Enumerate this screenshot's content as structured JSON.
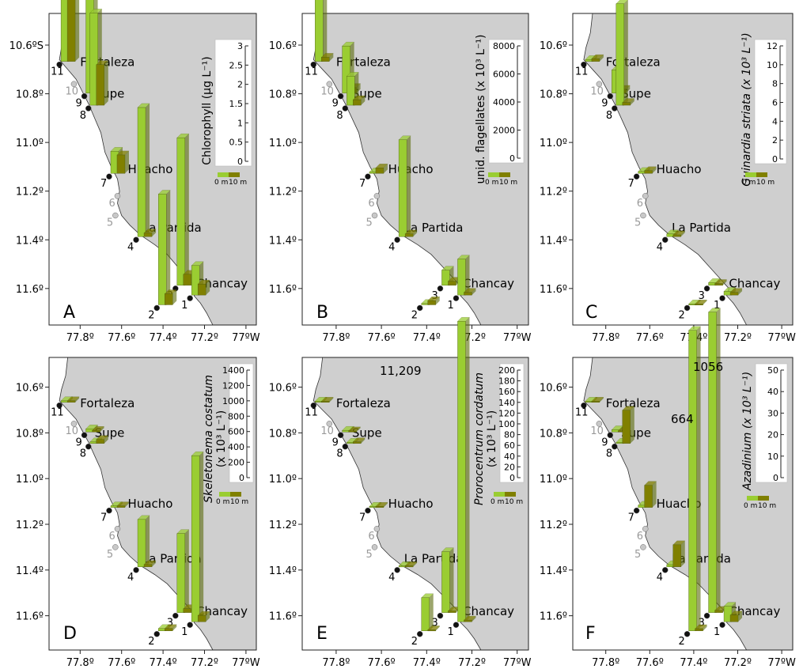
{
  "axes": {
    "lon_ticks": [
      {
        "value": -77.8,
        "label": "77.8º"
      },
      {
        "value": -77.6,
        "label": "77.6º"
      },
      {
        "value": -77.4,
        "label": "77.4º"
      },
      {
        "value": -77.2,
        "label": "77.2º"
      },
      {
        "value": -77.0,
        "label": "77ºW"
      }
    ],
    "lat_ticks": [
      {
        "value": -10.6,
        "label": "10.6º",
        "label_first": "10.6ºS"
      },
      {
        "value": -10.8,
        "label": "10.8º"
      },
      {
        "value": -11.0,
        "label": "11.0º"
      },
      {
        "value": -11.2,
        "label": "11.2º"
      },
      {
        "value": -11.4,
        "label": "11.4º"
      },
      {
        "value": -11.6,
        "label": "11.6º"
      }
    ],
    "lon_range": [
      -77.95,
      -76.95
    ],
    "lat_range": [
      -10.47,
      -11.75
    ]
  },
  "colors": {
    "land": "#cfcfcf",
    "sea": "#ffffff",
    "bar_0m": "#9acd32",
    "bar_10m": "#808000",
    "station_dark": "#111111",
    "station_light": "#c8c8c8",
    "label_light": "#9a9a9a"
  },
  "towns": [
    {
      "name": "Fortaleza",
      "lon": -77.8,
      "lat": -10.67
    },
    {
      "name": "Supe",
      "lon": -77.73,
      "lat": -10.8
    },
    {
      "name": "Huacho",
      "lon": -77.57,
      "lat": -11.11
    },
    {
      "name": "La Partida",
      "lon": -77.5,
      "lat": -11.35
    },
    {
      "name": "Chancay",
      "lon": -77.24,
      "lat": -11.58
    }
  ],
  "stations": [
    {
      "id": "1",
      "lon": -77.27,
      "lat": -11.64,
      "sampled": true
    },
    {
      "id": "2",
      "lon": -77.43,
      "lat": -11.68,
      "sampled": true
    },
    {
      "id": "3",
      "lon": -77.34,
      "lat": -11.6,
      "sampled": true
    },
    {
      "id": "4",
      "lon": -77.53,
      "lat": -11.4,
      "sampled": true
    },
    {
      "id": "5",
      "lon": -77.63,
      "lat": -11.3,
      "sampled": false
    },
    {
      "id": "6",
      "lon": -77.62,
      "lat": -11.22,
      "sampled": false
    },
    {
      "id": "7",
      "lon": -77.66,
      "lat": -11.14,
      "sampled": true
    },
    {
      "id": "8",
      "lon": -77.76,
      "lat": -10.86,
      "sampled": true
    },
    {
      "id": "9",
      "lon": -77.78,
      "lat": -10.81,
      "sampled": true
    },
    {
      "id": "10",
      "lon": -77.83,
      "lat": -10.76,
      "sampled": false
    },
    {
      "id": "11",
      "lon": -77.9,
      "lat": -10.68,
      "sampled": true
    }
  ],
  "legend": {
    "label_0m": "0 m",
    "label_10m": "10 m"
  },
  "chart_data": [
    {
      "type": "bar",
      "panel": "A",
      "ylabel": "Chlorophyll (µg L⁻¹)",
      "ylim": [
        0,
        3
      ],
      "yticks": [
        "0",
        "0.5",
        "1",
        "1.5",
        "2",
        "2.5",
        "3"
      ],
      "series_names": [
        "0 m",
        "10 m"
      ],
      "station_values": [
        {
          "station": "11",
          "v0": 3.0,
          "v10": 2.4
        },
        {
          "station": "9",
          "v0": 2.6,
          "v10": 0.2
        },
        {
          "station": "8",
          "v0": 2.5,
          "v10": 1.1
        },
        {
          "station": "7",
          "v0": 0.6,
          "v10": 0.5
        },
        {
          "station": "4",
          "v0": 3.5,
          "v10": 0.1
        },
        {
          "station": "2",
          "v0": 3.0,
          "v10": 0.3
        },
        {
          "station": "3",
          "v0": 4.0,
          "v10": 0.3
        },
        {
          "station": "1",
          "v0": 0.8,
          "v10": 0.3
        }
      ]
    },
    {
      "type": "bar",
      "panel": "B",
      "ylabel": "unid. flagellates (x 10³ L⁻¹)",
      "ylim": [
        0,
        8000
      ],
      "yticks": [
        "0",
        "2000",
        "4000",
        "6000",
        "8000"
      ],
      "series_names": [
        "0 m",
        "10 m"
      ],
      "station_values": [
        {
          "station": "11",
          "v0": 9000,
          "v10": 300
        },
        {
          "station": "9",
          "v0": 3400,
          "v10": 400
        },
        {
          "station": "8",
          "v0": 2100,
          "v10": 400
        },
        {
          "station": "7",
          "v0": 100,
          "v10": 400
        },
        {
          "station": "4",
          "v0": 7000,
          "v10": 200
        },
        {
          "station": "2",
          "v0": 100,
          "v10": 300
        },
        {
          "station": "3",
          "v0": 1100,
          "v10": 300
        },
        {
          "station": "1",
          "v0": 2600,
          "v10": 200
        }
      ]
    },
    {
      "type": "bar",
      "panel": "C",
      "ylabel": "Guinardia striata (x 10³ L⁻¹)",
      "ylim": [
        0,
        12
      ],
      "yticks": [
        "0",
        "2",
        "4",
        "6",
        "8",
        "10",
        "12"
      ],
      "series_names": [
        "0 m",
        "10 m"
      ],
      "station_values": [
        {
          "station": "11",
          "v0": 0.2,
          "v10": 0.3
        },
        {
          "station": "9",
          "v0": 2.5,
          "v10": 0.4
        },
        {
          "station": "8",
          "v0": 11.0,
          "v10": 0.3
        },
        {
          "station": "7",
          "v0": 0.2,
          "v10": 0.3
        },
        {
          "station": "4",
          "v0": 0.3,
          "v10": 0.2
        },
        {
          "station": "2",
          "v0": 0.1,
          "v10": 0.1
        },
        {
          "station": "3",
          "v0": 0.3,
          "v10": 0.2
        },
        {
          "station": "1",
          "v0": 0.4,
          "v10": 0.3
        }
      ]
    },
    {
      "type": "bar",
      "panel": "D",
      "ylabel_line1": "Skeletonema costatum",
      "ylabel_line2": "(x 10³ L⁻¹)",
      "ylim": [
        0,
        1400
      ],
      "yticks": [
        "0",
        "200",
        "400",
        "600",
        "800",
        "1000",
        "1200",
        "1400"
      ],
      "series_names": [
        "0 m",
        "10 m"
      ],
      "station_values": [
        {
          "station": "11",
          "v0": 20,
          "v10": 20
        },
        {
          "station": "9",
          "v0": 40,
          "v10": 20
        },
        {
          "station": "8",
          "v0": 20,
          "v10": 50
        },
        {
          "station": "7",
          "v0": 20,
          "v10": 20
        },
        {
          "station": "4",
          "v0": 600,
          "v10": 30
        },
        {
          "station": "2",
          "v0": 30,
          "v10": 30
        },
        {
          "station": "3",
          "v0": 1000,
          "v10": 50
        },
        {
          "station": "1",
          "v0": 2100,
          "v10": 80
        }
      ]
    },
    {
      "type": "bar",
      "panel": "E",
      "ylabel_line1": "Prorocentrum cordatum",
      "ylabel_line2": "(x 10³ L⁻¹)",
      "ylim": [
        0,
        200
      ],
      "yticks": [
        "0",
        "20",
        "40",
        "60",
        "80",
        "100",
        "120",
        "140",
        "160",
        "180",
        "200"
      ],
      "annotation": "11,209",
      "series_names": [
        "0 m",
        "10 m"
      ],
      "station_values": [
        {
          "station": "11",
          "v0": 2,
          "v10": 2
        },
        {
          "station": "9",
          "v0": 3,
          "v10": 2
        },
        {
          "station": "8",
          "v0": 2,
          "v10": 3
        },
        {
          "station": "7",
          "v0": 2,
          "v10": 2
        },
        {
          "station": "4",
          "v0": 2,
          "v10": 2
        },
        {
          "station": "2",
          "v0": 60,
          "v10": 2
        },
        {
          "station": "3",
          "v0": 110,
          "v10": 3
        },
        {
          "station": "1",
          "v0": 11209,
          "v10": 3
        }
      ]
    },
    {
      "type": "bar",
      "panel": "F",
      "ylabel": "Azadinium (x 10³ L⁻¹)",
      "ylim": [
        0,
        50
      ],
      "yticks": [
        "0",
        "10",
        "20",
        "30",
        "40",
        "50"
      ],
      "annotations": [
        "664",
        "1056"
      ],
      "series_names": [
        "0 m",
        "10 m"
      ],
      "station_values": [
        {
          "station": "11",
          "v0": 0.5,
          "v10": 0.5
        },
        {
          "station": "9",
          "v0": 1,
          "v10": 0.5
        },
        {
          "station": "8",
          "v0": 0.5,
          "v10": 15
        },
        {
          "station": "7",
          "v0": 1,
          "v10": 10
        },
        {
          "station": "4",
          "v0": 1,
          "v10": 10
        },
        {
          "station": "2",
          "v0": 664,
          "v10": 1
        },
        {
          "station": "3",
          "v0": 1056,
          "v10": 1
        },
        {
          "station": "1",
          "v0": 7,
          "v10": 3
        }
      ]
    }
  ]
}
